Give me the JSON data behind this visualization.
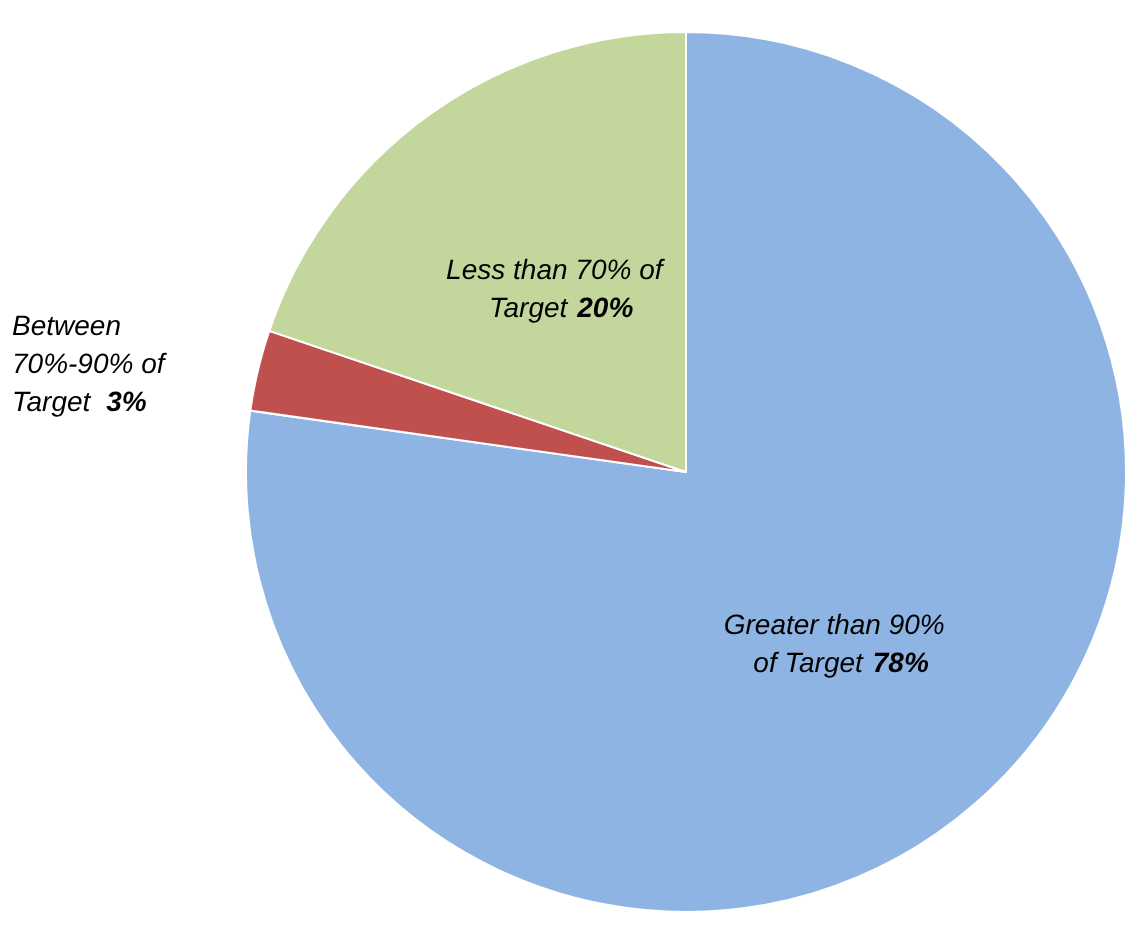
{
  "chart_data": {
    "type": "pie",
    "categories": [
      "Greater than 90% of Target",
      "Between 70%-90% of Target",
      "Less than 70% of Target"
    ],
    "values": [
      78,
      3,
      20
    ],
    "value_labels": [
      "78%",
      "3%",
      "20%"
    ],
    "colors": [
      "#8eb4e3",
      "#c0504d",
      "#c3d69b"
    ],
    "legend": false
  }
}
